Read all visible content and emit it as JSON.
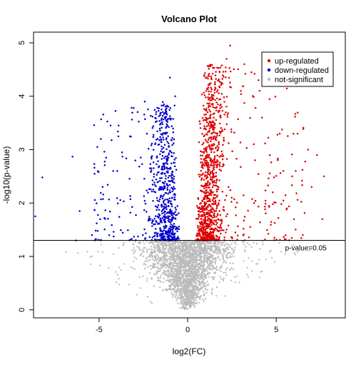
{
  "chart_data": {
    "type": "scatter",
    "title": "Volcano Plot",
    "xlabel": "log2(FC)",
    "ylabel": "-log10(p-value)",
    "xlim": [
      -8.7,
      8.9
    ],
    "ylim": [
      -0.15,
      5.2
    ],
    "x_ticks": [
      -5,
      0,
      5
    ],
    "y_ticks": [
      0,
      1,
      2,
      3,
      4,
      5
    ],
    "grid": false,
    "legend_position": "top-right",
    "threshold": {
      "y": 1.301,
      "label": "p-value=0.05"
    },
    "series": [
      {
        "name": "up-regulated",
        "color": "#dd0000",
        "x_range": [
          0.1,
          7.8
        ],
        "y_range": [
          1.301,
          4.95
        ],
        "outliers": [
          [
            2.4,
            4.95
          ],
          [
            2.2,
            4.7
          ],
          [
            3.2,
            4.6
          ],
          [
            3.6,
            4.45
          ],
          [
            4.0,
            4.3
          ],
          [
            3.0,
            4.1
          ],
          [
            5.2,
            3.3
          ],
          [
            6.2,
            3.3
          ],
          [
            6.8,
            3.0
          ],
          [
            7.3,
            2.9
          ],
          [
            7.7,
            2.5
          ],
          [
            6.1,
            2.6
          ],
          [
            4.8,
            2.2
          ],
          [
            5.6,
            1.9
          ],
          [
            7.6,
            1.7
          ],
          [
            6.5,
            1.4
          ],
          [
            7.0,
            2.3
          ],
          [
            4.2,
            3.6
          ],
          [
            3.8,
            2.8
          ],
          [
            5.9,
            2.5
          ]
        ]
      },
      {
        "name": "down-regulated",
        "color": "#0000cc",
        "x_range": [
          -8.6,
          -0.1
        ],
        "y_range": [
          1.301,
          4.35
        ],
        "outliers": [
          [
            -8.2,
            2.48
          ],
          [
            -6.5,
            2.87
          ],
          [
            -8.6,
            1.75
          ],
          [
            -6.1,
            1.85
          ],
          [
            -4.9,
            3.2
          ],
          [
            -5.1,
            3.05
          ],
          [
            -4.6,
            2.85
          ],
          [
            -4.2,
            2.6
          ],
          [
            -3.9,
            3.45
          ],
          [
            -3.7,
            2.95
          ],
          [
            -5.4,
            1.4
          ],
          [
            -6.3,
            1.3
          ],
          [
            -4.8,
            2.3
          ],
          [
            -2.3,
            3.3
          ],
          [
            -1.0,
            4.35
          ],
          [
            -0.7,
            4.0
          ]
        ]
      },
      {
        "name": "not-significant",
        "color": "#bbbbbb",
        "x_range": [
          -8.2,
          7.9
        ],
        "y_range": [
          0,
          1.301
        ]
      }
    ]
  }
}
